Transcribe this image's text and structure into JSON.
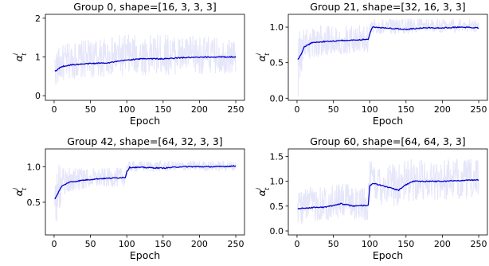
{
  "chart_data": [
    {
      "type": "line",
      "title": "Group 0, shape=[16, 3, 3, 3]",
      "xlabel": "Epoch",
      "ylabel": "α",
      "ylabel_sub": "t",
      "ylabel_sup": "i",
      "xlim": [
        -12,
        262
      ],
      "ylim": [
        -0.12,
        2.1
      ],
      "xticks": [
        0,
        50,
        100,
        150,
        200,
        250
      ],
      "yticks": [
        0,
        1,
        2
      ],
      "series": [
        {
          "role": "mean",
          "color": "#0000cd",
          "x": [
            1,
            10,
            25,
            50,
            75,
            100,
            125,
            150,
            175,
            200,
            225,
            250
          ],
          "y": [
            0.62,
            0.75,
            0.8,
            0.83,
            0.85,
            0.92,
            0.96,
            0.95,
            0.98,
            0.99,
            1.0,
            1.0
          ]
        },
        {
          "role": "band",
          "color": "#e6e6fa",
          "x": [
            1,
            10,
            25,
            50,
            75,
            100,
            125,
            150,
            175,
            200,
            225,
            250
          ],
          "low": [
            0.2,
            0.35,
            0.42,
            0.45,
            0.48,
            0.5,
            0.52,
            0.53,
            0.55,
            0.55,
            0.56,
            0.56
          ],
          "high": [
            1.2,
            1.3,
            1.4,
            1.45,
            1.5,
            1.6,
            1.55,
            1.6,
            1.55,
            1.55,
            1.5,
            1.5
          ]
        }
      ]
    },
    {
      "type": "line",
      "title": "Group 21, shape=[32, 16, 3, 3]",
      "xlabel": "Epoch",
      "ylabel": "α",
      "ylabel_sub": "t",
      "ylabel_sup": "i",
      "xlim": [
        -12,
        262
      ],
      "ylim": [
        -0.03,
        1.18
      ],
      "xticks": [
        0,
        50,
        100,
        150,
        200,
        250
      ],
      "yticks": [
        0.0,
        0.5,
        1.0
      ],
      "series": [
        {
          "role": "mean",
          "color": "#0000cd",
          "x": [
            1,
            5,
            10,
            20,
            40,
            60,
            80,
            98,
            100,
            104,
            120,
            150,
            175,
            200,
            225,
            250
          ],
          "y": [
            0.55,
            0.6,
            0.72,
            0.78,
            0.8,
            0.81,
            0.82,
            0.83,
            0.9,
            1.0,
            0.99,
            0.97,
            0.99,
            0.99,
            1.0,
            0.99
          ]
        },
        {
          "role": "band",
          "color": "#e6e6fa",
          "x": [
            1,
            5,
            10,
            20,
            40,
            60,
            80,
            98,
            100,
            104,
            120,
            150,
            175,
            200,
            225,
            250
          ],
          "low": [
            0.0,
            0.2,
            0.45,
            0.55,
            0.6,
            0.62,
            0.63,
            0.64,
            0.85,
            0.9,
            0.9,
            0.9,
            0.92,
            0.92,
            0.92,
            0.92
          ],
          "high": [
            0.9,
            1.0,
            1.02,
            1.02,
            1.02,
            1.02,
            1.03,
            1.03,
            1.1,
            1.12,
            1.12,
            1.12,
            1.12,
            1.12,
            1.12,
            1.12
          ]
        }
      ]
    },
    {
      "type": "line",
      "title": "Group 42, shape=[64, 32, 3, 3]",
      "xlabel": "Epoch",
      "ylabel": "α",
      "ylabel_sub": "t",
      "ylabel_sup": "i",
      "xlim": [
        -12,
        262
      ],
      "ylim": [
        0.04,
        1.25
      ],
      "xticks": [
        0,
        50,
        100,
        150,
        200,
        250
      ],
      "yticks": [
        0.5,
        1.0
      ],
      "series": [
        {
          "role": "mean",
          "color": "#0000cd",
          "x": [
            1,
            5,
            10,
            20,
            40,
            60,
            80,
            98,
            100,
            104,
            120,
            150,
            175,
            200,
            225,
            250
          ],
          "y": [
            0.55,
            0.62,
            0.72,
            0.78,
            0.81,
            0.83,
            0.84,
            0.85,
            0.93,
            0.99,
            0.99,
            0.98,
            1.0,
            1.0,
            1.0,
            1.01
          ]
        },
        {
          "role": "band",
          "color": "#e6e6fa",
          "x": [
            1,
            5,
            10,
            20,
            40,
            60,
            80,
            98,
            100,
            104,
            120,
            150,
            175,
            200,
            225,
            250
          ],
          "low": [
            0.1,
            0.3,
            0.5,
            0.62,
            0.68,
            0.7,
            0.71,
            0.72,
            0.85,
            0.92,
            0.93,
            0.93,
            0.94,
            0.94,
            0.94,
            0.94
          ],
          "high": [
            1.2,
            1.05,
            0.98,
            0.98,
            0.98,
            0.98,
            0.98,
            0.99,
            1.05,
            1.08,
            1.08,
            1.08,
            1.08,
            1.08,
            1.08,
            1.08
          ]
        }
      ]
    },
    {
      "type": "line",
      "title": "Group 60, shape=[64, 64, 3, 3]",
      "xlabel": "Epoch",
      "ylabel": "α",
      "ylabel_sub": "t",
      "ylabel_sup": "i",
      "xlim": [
        -12,
        262
      ],
      "ylim": [
        -0.08,
        1.65
      ],
      "xticks": [
        0,
        50,
        100,
        150,
        200,
        250
      ],
      "yticks": [
        0.0,
        0.5,
        1.0,
        1.5
      ],
      "series": [
        {
          "role": "mean",
          "color": "#0000cd",
          "x": [
            1,
            20,
            40,
            60,
            70,
            80,
            98,
            100,
            104,
            120,
            140,
            150,
            160,
            200,
            250
          ],
          "y": [
            0.45,
            0.47,
            0.48,
            0.55,
            0.52,
            0.5,
            0.52,
            0.9,
            0.96,
            0.9,
            0.82,
            0.93,
            1.0,
            1.0,
            1.03
          ]
        },
        {
          "role": "band",
          "color": "#e6e6fa",
          "x": [
            1,
            20,
            40,
            60,
            70,
            80,
            98,
            100,
            104,
            120,
            140,
            150,
            160,
            200,
            250
          ],
          "low": [
            0.1,
            0.2,
            0.22,
            0.25,
            0.25,
            0.22,
            0.2,
            0.5,
            0.55,
            0.5,
            0.5,
            0.55,
            0.6,
            0.62,
            0.65
          ],
          "high": [
            0.85,
            0.9,
            0.92,
            0.95,
            0.95,
            0.9,
            0.9,
            1.45,
            1.45,
            1.4,
            1.4,
            1.42,
            1.45,
            1.45,
            1.45
          ]
        }
      ]
    }
  ]
}
